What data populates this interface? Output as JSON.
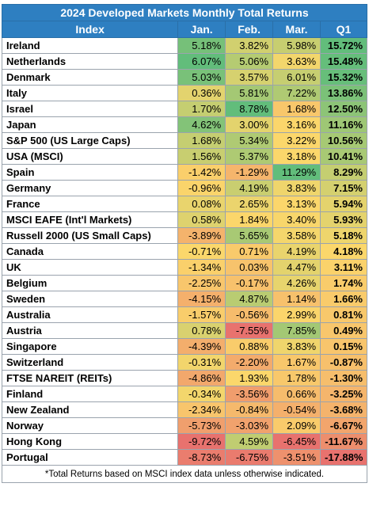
{
  "title": "2024 Developed Markets Monthly Total Returns",
  "columns": [
    "Index",
    "Jan.",
    "Feb.",
    "Mar.",
    "Q1"
  ],
  "rows": [
    {
      "index": "Ireland",
      "jan": "5.18%",
      "feb": "3.82%",
      "mar": "5.98%",
      "q1": "15.72%"
    },
    {
      "index": "Netherlands",
      "jan": "6.07%",
      "feb": "5.06%",
      "mar": "3.63%",
      "q1": "15.48%"
    },
    {
      "index": "Denmark",
      "jan": "5.03%",
      "feb": "3.57%",
      "mar": "6.01%",
      "q1": "15.32%"
    },
    {
      "index": "Italy",
      "jan": "0.36%",
      "feb": "5.81%",
      "mar": "7.22%",
      "q1": "13.86%"
    },
    {
      "index": "Israel",
      "jan": "1.70%",
      "feb": "8.78%",
      "mar": "1.68%",
      "q1": "12.50%"
    },
    {
      "index": "Japan",
      "jan": "4.62%",
      "feb": "3.00%",
      "mar": "3.16%",
      "q1": "11.16%"
    },
    {
      "index": "S&P 500 (US Large Caps)",
      "jan": "1.68%",
      "feb": "5.34%",
      "mar": "3.22%",
      "q1": "10.56%"
    },
    {
      "index": "USA (MSCI)",
      "jan": "1.56%",
      "feb": "5.37%",
      "mar": "3.18%",
      "q1": "10.41%"
    },
    {
      "index": "Spain",
      "jan": "-1.42%",
      "feb": "-1.29%",
      "mar": "11.29%",
      "q1": "8.29%"
    },
    {
      "index": "Germany",
      "jan": "-0.96%",
      "feb": "4.19%",
      "mar": "3.83%",
      "q1": "7.15%"
    },
    {
      "index": "France",
      "jan": "0.08%",
      "feb": "2.65%",
      "mar": "3.13%",
      "q1": "5.94%"
    },
    {
      "index": "MSCI EAFE (Int'l Markets)",
      "jan": "0.58%",
      "feb": "1.84%",
      "mar": "3.40%",
      "q1": "5.93%"
    },
    {
      "index": "Russell 2000 (US Small Caps)",
      "jan": "-3.89%",
      "feb": "5.65%",
      "mar": "3.58%",
      "q1": "5.18%"
    },
    {
      "index": "Canada",
      "jan": "-0.71%",
      "feb": "0.71%",
      "mar": "4.19%",
      "q1": "4.18%"
    },
    {
      "index": "UK",
      "jan": "-1.34%",
      "feb": "0.03%",
      "mar": "4.47%",
      "q1": "3.11%"
    },
    {
      "index": "Belgium",
      "jan": "-2.25%",
      "feb": "-0.17%",
      "mar": "4.26%",
      "q1": "1.74%"
    },
    {
      "index": "Sweden",
      "jan": "-4.15%",
      "feb": "4.87%",
      "mar": "1.14%",
      "q1": "1.66%"
    },
    {
      "index": "Australia",
      "jan": "-1.57%",
      "feb": "-0.56%",
      "mar": "2.99%",
      "q1": "0.81%"
    },
    {
      "index": "Austria",
      "jan": "0.78%",
      "feb": "-7.55%",
      "mar": "7.85%",
      "q1": "0.49%"
    },
    {
      "index": "Singapore",
      "jan": "-4.39%",
      "feb": "0.88%",
      "mar": "3.83%",
      "q1": "0.15%"
    },
    {
      "index": "Switzerland",
      "jan": "-0.31%",
      "feb": "-2.20%",
      "mar": "1.67%",
      "q1": "-0.87%"
    },
    {
      "index": "FTSE NAREIT (REITs)",
      "jan": "-4.86%",
      "feb": "1.93%",
      "mar": "1.78%",
      "q1": "-1.30%"
    },
    {
      "index": "Finland",
      "jan": "-0.34%",
      "feb": "-3.56%",
      "mar": "0.66%",
      "q1": "-3.25%"
    },
    {
      "index": "New Zealand",
      "jan": "-2.34%",
      "feb": "-0.84%",
      "mar": "-0.54%",
      "q1": "-3.68%"
    },
    {
      "index": "Norway",
      "jan": "-5.73%",
      "feb": "-3.03%",
      "mar": "2.09%",
      "q1": "-6.67%"
    },
    {
      "index": "Hong Kong",
      "jan": "-9.72%",
      "feb": "4.59%",
      "mar": "-6.45%",
      "q1": "-11.67%"
    },
    {
      "index": "Portugal",
      "jan": "-8.73%",
      "feb": "-6.75%",
      "mar": "-3.51%",
      "q1": "-17.88%"
    }
  ],
  "footnote": "*Total Returns based on MSCI index data unless otherwise indicated.",
  "colors": {
    "header_bg": "#2e7fc1",
    "scale_red": "#e8726e",
    "scale_yellow": "#fbd76b",
    "scale_green": "#62bd7b"
  }
}
